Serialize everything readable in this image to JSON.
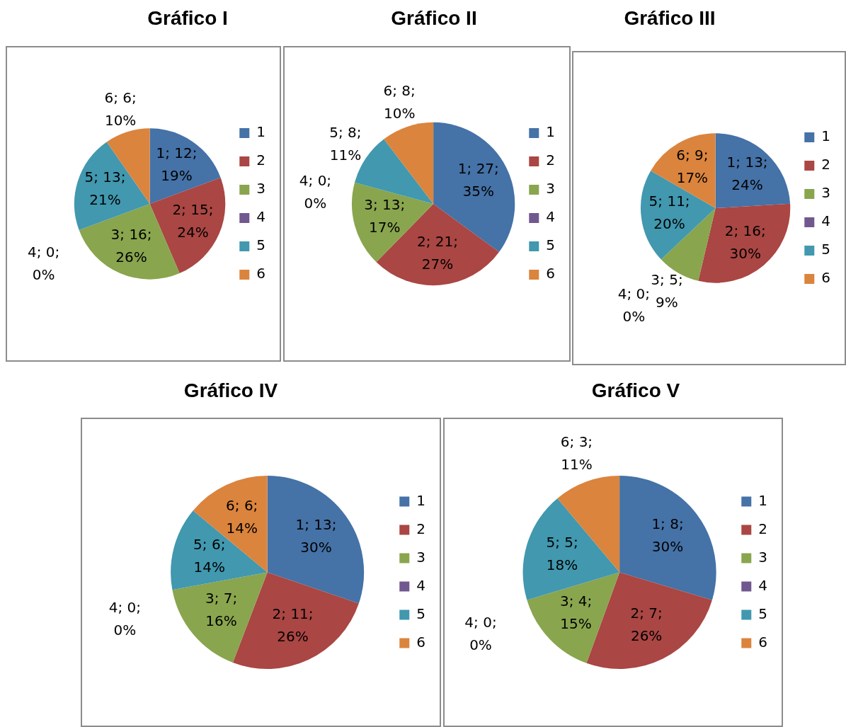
{
  "chart_data": [
    {
      "type": "pie",
      "title": "Gráfico I",
      "categories": [
        "1",
        "2",
        "3",
        "4",
        "5",
        "6"
      ],
      "values": [
        12,
        15,
        16,
        0,
        13,
        6
      ],
      "colors": [
        "#4572a7",
        "#aa4643",
        "#89a54e",
        "#71588f",
        "#4198af",
        "#db843d"
      ],
      "value_labels": [
        "1; 12; 19%",
        "2; 15; 24%",
        "3; 16; 26%",
        "4; 0; 0%",
        "5; 13; 21%",
        "6; 6; 10%"
      ],
      "legend": "right"
    },
    {
      "type": "pie",
      "title": "Gráfico II",
      "categories": [
        "1",
        "2",
        "3",
        "4",
        "5",
        "6"
      ],
      "values": [
        27,
        21,
        13,
        0,
        8,
        8
      ],
      "colors": [
        "#4572a7",
        "#aa4643",
        "#89a54e",
        "#71588f",
        "#4198af",
        "#db843d"
      ],
      "value_labels": [
        "1; 27; 35%",
        "2; 21; 27%",
        "3; 13; 17%",
        "4; 0; 0%",
        "5; 8; 11%",
        "6; 8; 10%"
      ],
      "legend": "right"
    },
    {
      "type": "pie",
      "title": "Gráfico III",
      "categories": [
        "1",
        "2",
        "3",
        "4",
        "5",
        "6"
      ],
      "values": [
        13,
        16,
        5,
        0,
        11,
        9
      ],
      "colors": [
        "#4572a7",
        "#aa4643",
        "#89a54e",
        "#71588f",
        "#4198af",
        "#db843d"
      ],
      "value_labels": [
        "1; 13; 24%",
        "2; 16; 30%",
        "3; 5; 9%",
        "4; 0; 0%",
        "5; 11; 20%",
        "6; 9; 17%"
      ],
      "legend": "right"
    },
    {
      "type": "pie",
      "title": "Gráfico IV",
      "categories": [
        "1",
        "2",
        "3",
        "4",
        "5",
        "6"
      ],
      "values": [
        13,
        11,
        7,
        0,
        6,
        6
      ],
      "colors": [
        "#4572a7",
        "#aa4643",
        "#89a54e",
        "#71588f",
        "#4198af",
        "#db843d"
      ],
      "value_labels": [
        "1; 13; 30%",
        "2; 11; 26%",
        "3; 7; 16%",
        "4; 0; 0%",
        "5; 6; 14%",
        "6; 6; 14%"
      ],
      "legend": "right"
    },
    {
      "type": "pie",
      "title": "Gráfico V",
      "categories": [
        "1",
        "2",
        "3",
        "4",
        "5",
        "6"
      ],
      "values": [
        8,
        7,
        4,
        0,
        5,
        3
      ],
      "colors": [
        "#4572a7",
        "#aa4643",
        "#89a54e",
        "#71588f",
        "#4198af",
        "#db843d"
      ],
      "value_labels": [
        "1; 8; 30%",
        "2; 7; 26%",
        "3; 4; 15%",
        "4; 0; 0%",
        "5; 5; 18%",
        "6; 3; 11%"
      ],
      "legend": "right"
    }
  ]
}
